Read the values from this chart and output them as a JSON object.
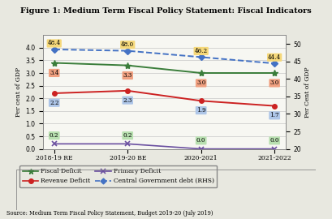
{
  "title": "Figure 1: Medium Term Fiscal Policy Statement: Fiscal Indicators",
  "source": "Source: Medium Term Fiscal Policy Statement, Budget 2019-20 (July 2019)",
  "categories": [
    "2018-19 RE",
    "2019-20 BE",
    "2020-2021",
    "2021-2022"
  ],
  "fiscal_deficit": [
    3.4,
    3.3,
    3.0,
    3.0
  ],
  "revenue_deficit": [
    2.2,
    2.3,
    1.9,
    1.7
  ],
  "primary_deficit": [
    0.2,
    0.2,
    0.0,
    0.0
  ],
  "central_govt_debt": [
    48.4,
    48.0,
    46.2,
    44.4
  ],
  "fiscal_deficit_color": "#3a7d3a",
  "revenue_deficit_color": "#cc2222",
  "primary_deficit_color": "#6a4fa0",
  "central_govt_debt_color": "#4472c4",
  "fd_label_bg": "#f0a080",
  "rd_label_bg": "#aec6e8",
  "pd_label_bg": "#b8e0b0",
  "cgd_label_bg": "#f5d87a",
  "ylim_left": [
    0.0,
    4.5
  ],
  "ylim_right": [
    20.0,
    52.5
  ],
  "ylabel_left": "Per cent of GDP",
  "ylabel_right": "Per Cent of GDP",
  "yticks_left": [
    0.0,
    0.5,
    1.0,
    1.5,
    2.0,
    2.5,
    3.0,
    3.5,
    4.0
  ],
  "yticks_right": [
    20.0,
    25.0,
    30.0,
    35.0,
    40.0,
    45.0,
    50.0
  ],
  "bg_color": "#e8e8e0",
  "plot_bg_color": "#f7f7f2"
}
